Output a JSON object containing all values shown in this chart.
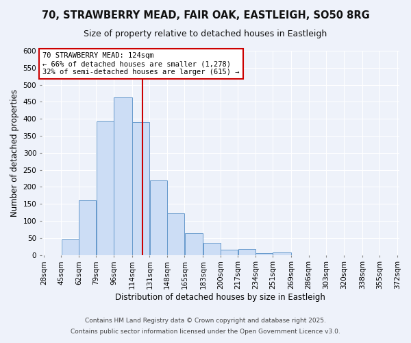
{
  "title": "70, STRAWBERRY MEAD, FAIR OAK, EASTLEIGH, SO50 8RG",
  "subtitle": "Size of property relative to detached houses in Eastleigh",
  "xlabel": "Distribution of detached houses by size in Eastleigh",
  "ylabel": "Number of detached properties",
  "bar_values": [
    0,
    45,
    160,
    393,
    463,
    390,
    220,
    122,
    63,
    35,
    15,
    18,
    5,
    7,
    0,
    0,
    0,
    0,
    0,
    0
  ],
  "bin_labels": [
    "28sqm",
    "45sqm",
    "62sqm",
    "79sqm",
    "96sqm",
    "114sqm",
    "131sqm",
    "148sqm",
    "165sqm",
    "183sqm",
    "200sqm",
    "217sqm",
    "234sqm",
    "251sqm",
    "269sqm",
    "286sqm",
    "303sqm",
    "320sqm",
    "338sqm",
    "355sqm",
    "372sqm"
  ],
  "bar_edges": [
    28,
    45,
    62,
    79,
    96,
    114,
    131,
    148,
    165,
    183,
    200,
    217,
    234,
    251,
    269,
    286,
    303,
    320,
    338,
    355,
    372
  ],
  "bar_color": "#ccddf5",
  "bar_edge_color": "#6699cc",
  "vline_x": 124,
  "vline_color": "#cc0000",
  "annotation_text": "70 STRAWBERRY MEAD: 124sqm\n← 66% of detached houses are smaller (1,278)\n32% of semi-detached houses are larger (615) →",
  "annotation_box_facecolor": "#ffffff",
  "annotation_box_edgecolor": "#cc0000",
  "ylim": [
    0,
    600
  ],
  "yticks": [
    0,
    50,
    100,
    150,
    200,
    250,
    300,
    350,
    400,
    450,
    500,
    550,
    600
  ],
  "bg_color": "#eef2fa",
  "grid_color": "#ffffff",
  "footer1": "Contains HM Land Registry data © Crown copyright and database right 2025.",
  "footer2": "Contains public sector information licensed under the Open Government Licence v3.0.",
  "title_fontsize": 10.5,
  "subtitle_fontsize": 9,
  "axis_label_fontsize": 8.5,
  "tick_fontsize": 7.5,
  "annotation_fontsize": 7.5,
  "footer_fontsize": 6.5
}
